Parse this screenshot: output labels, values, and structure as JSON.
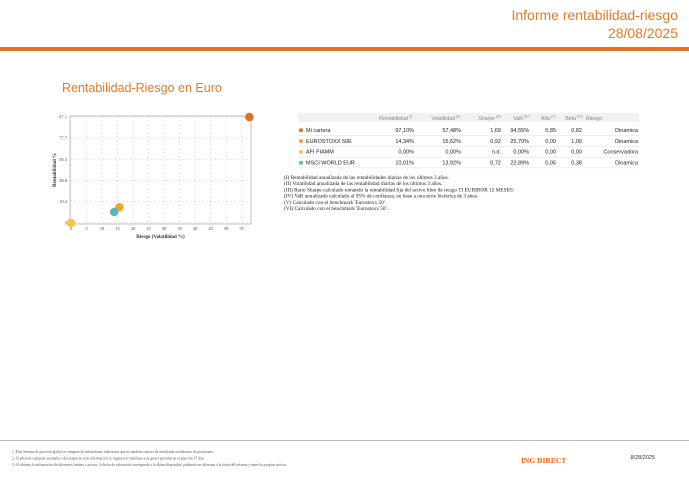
{
  "header": {
    "title": "Informe rentabilidad-riesgo",
    "date": "28/08/2025"
  },
  "section_title": "Rentabilidad-Riesgo en Euro",
  "chart_data": {
    "type": "scatter",
    "x_label": "Riesgo (Volatilidad %)",
    "y_label": "Rentabilidad %",
    "xlim": [
      -0.3,
      58
    ],
    "ylim": [
      -1,
      98
    ],
    "xticks": [
      0,
      5,
      10,
      15,
      20,
      25,
      30,
      35,
      40,
      45,
      50,
      55
    ],
    "yticks": [
      0,
      19.4,
      38.8,
      58.3,
      77.7,
      97.1
    ],
    "grid": true,
    "series": [
      {
        "name": "Mi cartera",
        "color": "#e2711d",
        "x": [
          57.48
        ],
        "values": [
          97.1
        ]
      },
      {
        "name": "EUROSTOXX 50E",
        "color": "#f0a431",
        "x": [
          15.62
        ],
        "values": [
          14.34
        ]
      },
      {
        "name": "AFI FIAMM",
        "color": "#f4c445",
        "x": [
          0.0
        ],
        "values": [
          0.0
        ]
      },
      {
        "name": "MSCI WORLD EUR",
        "color": "#5bb5be",
        "x": [
          13.92
        ],
        "values": [
          10.01
        ]
      }
    ]
  },
  "table": {
    "columns": [
      {
        "label": "Rentabilidad",
        "note": "(I)"
      },
      {
        "label": "Volatilidad",
        "note": "(II)"
      },
      {
        "label": "Sharpe",
        "note": "(III)"
      },
      {
        "label": "VaR",
        "note": "(IV)"
      },
      {
        "label": "Alfa",
        "note": "(V)"
      },
      {
        "label": "Beta",
        "note": "(VI)"
      },
      {
        "label": "Riesgo",
        "note": null
      }
    ],
    "rows": [
      [
        "Mi cartera",
        "97,10%",
        "57,48%",
        "1,69",
        "94,55%",
        "0,85",
        "0,82",
        "Dinamica"
      ],
      [
        "EUROSTOXX 50E",
        "14,34%",
        "15,62%",
        "0,92",
        "25,70%",
        "0,00",
        "1,00",
        "Dinamica"
      ],
      [
        "AFI FIAMM",
        "0,00%",
        "0,00%",
        "n.d.",
        "0,00%",
        "0,00",
        "0,00",
        "Conservadora"
      ],
      [
        "MSCI WORLD EUR",
        "10,01%",
        "13,92%",
        "0,72",
        "22,89%",
        "0,05",
        "0,38",
        "Dinamica"
      ]
    ]
  },
  "notes": [
    "(I) Rentabilidad anualizada de las rentabilidades diarias de los últimos 3 años.",
    "(II) Volatilidad anualizada de las rentabilidad diarias de los últimos 3 años.",
    "(III) Ratio Sharpe calculado tomando la rentabilidad fija del activo libre de riesgo TI EURIBOR 12 MESES.",
    "(IV) VaR anualizado calculado al 95% de confianza, en base a una serie histórica de 3 años.",
    "(V) Calculado con el benchmark 'Eurostoxx 50'.",
    "(VI) Calculado con el benchmark 'Eurostoxx 50'."
  ],
  "footer": {
    "disclaimers": [
      "1.-Este informe de posición global se compone de valoraciones indicativas que no tendrán carácter de certificado acreditativo de posiciones.",
      "2.-Si advierte cualquier anomalía o discrepancia en la información, le rogamos lo notifique a su gestor personal en el plazo de 15 días.",
      "3.-Al obtener la información de diferentes fuentes y activos, la fecha de valoración corresponde a la última disponible, pudiendo ser diferente a la fecha del informe y entre los propios activos."
    ],
    "logo": "ING DIRECT",
    "date": "8/28/2025"
  }
}
